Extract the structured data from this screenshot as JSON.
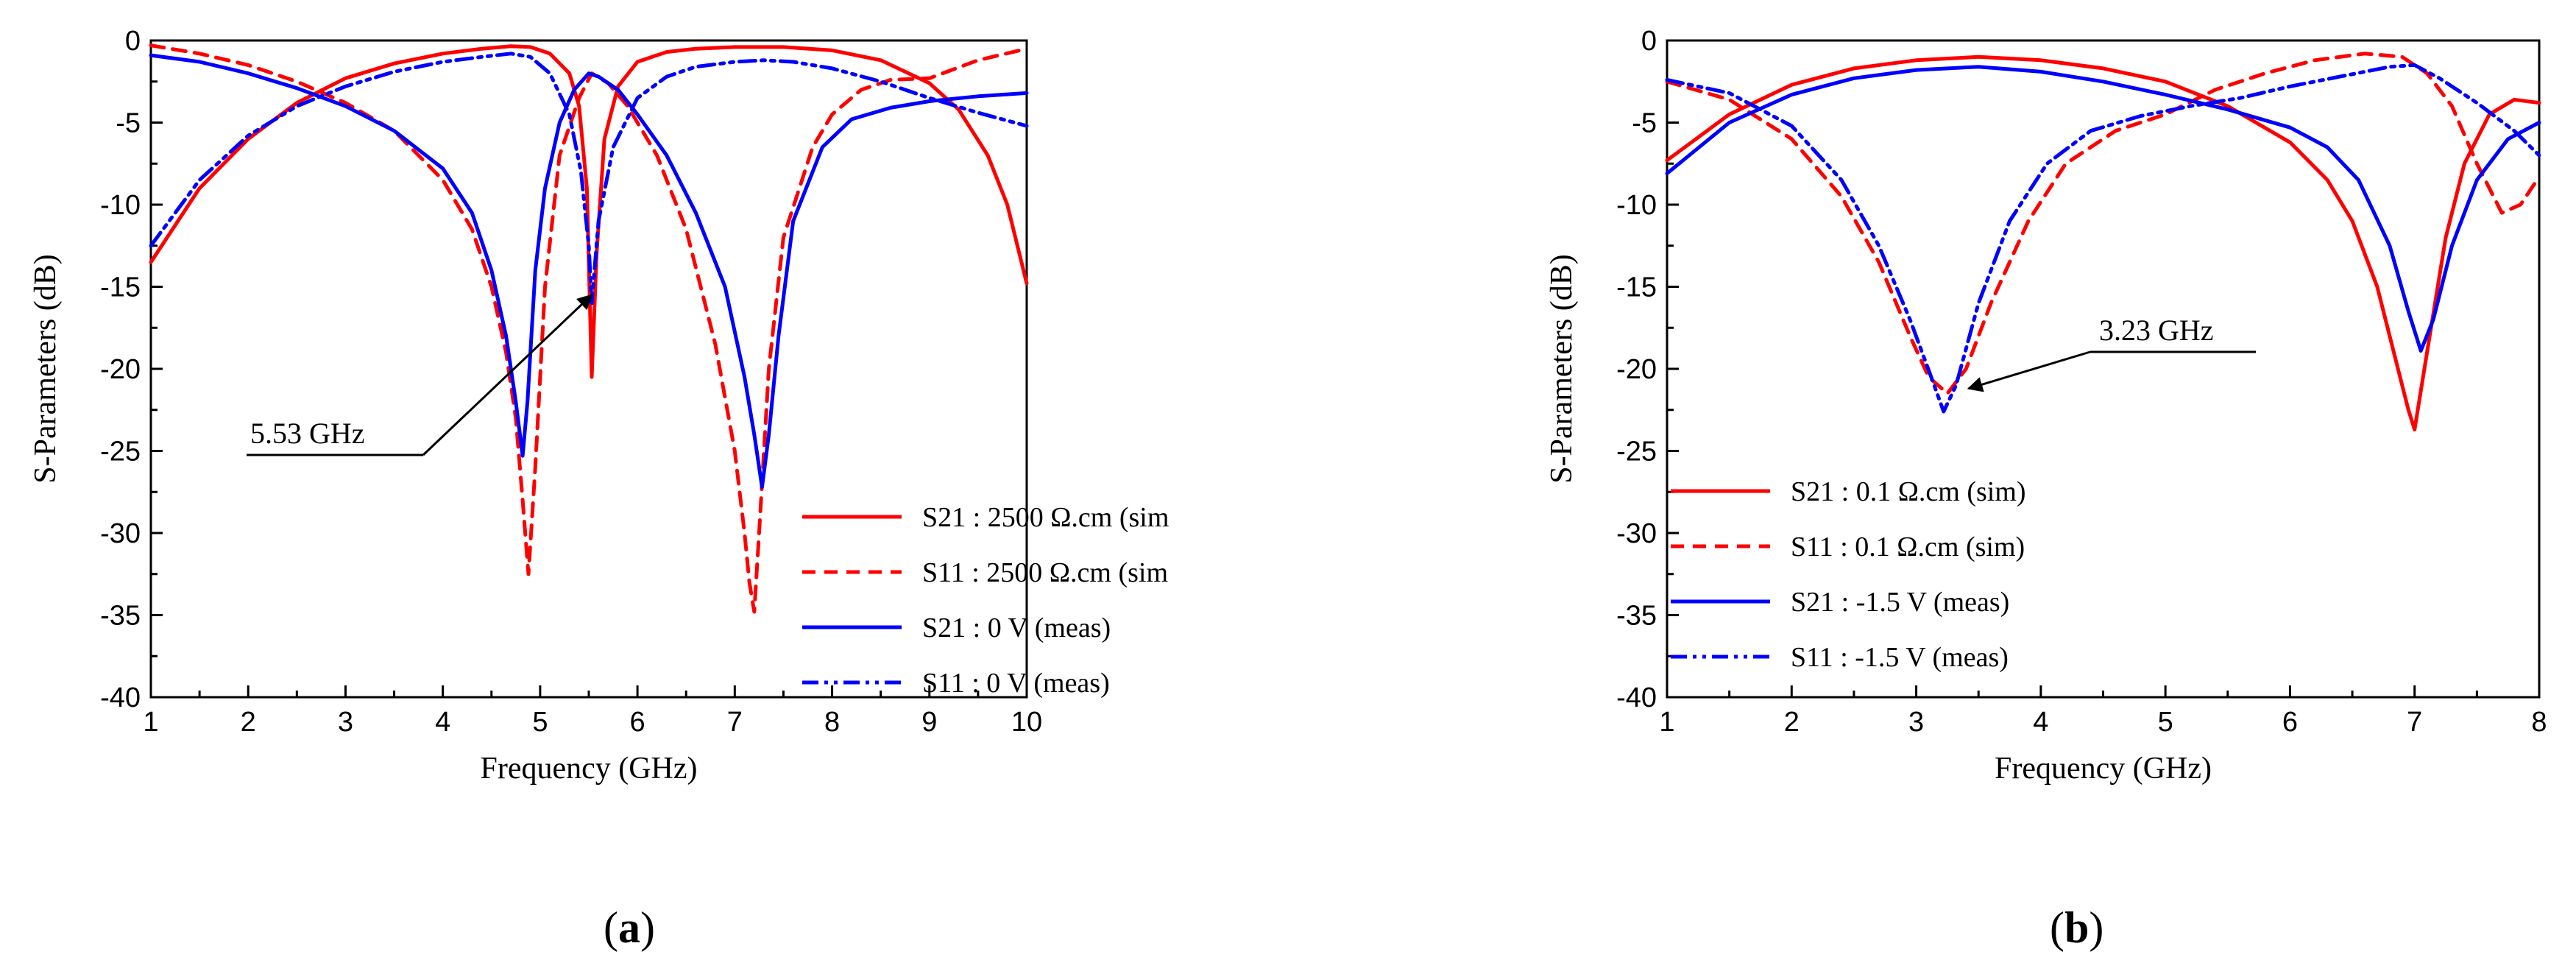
{
  "chart_data": [
    {
      "type": "line",
      "panel": "a",
      "caption_open": "(",
      "caption_letter": "a",
      "caption_close": ")",
      "xlabel": "Frequency (GHz)",
      "ylabel": "S-Parameters (dB)",
      "xlim": [
        1,
        10
      ],
      "ylim": [
        -40,
        0
      ],
      "xticks": [
        1,
        2,
        3,
        4,
        5,
        6,
        7,
        8,
        9,
        10
      ],
      "yticks": [
        0,
        -5,
        -10,
        -15,
        -20,
        -25,
        -30,
        -35,
        -40
      ],
      "legend_position": "bottom-right",
      "annotation": {
        "text": "5.53 GHz",
        "target": [
          5.53,
          -15.5
        ]
      },
      "series": [
        {
          "name": "S21 : 2500 Ω.cm (sim",
          "color": "#ff0000",
          "dash": "solid",
          "x": [
            1,
            1.5,
            2,
            2.5,
            3,
            3.5,
            4,
            4.4,
            4.7,
            4.9,
            5.1,
            5.3,
            5.4,
            5.48,
            5.53,
            5.58,
            5.66,
            5.8,
            6,
            6.3,
            6.6,
            7,
            7.5,
            8,
            8.5,
            9,
            9.3,
            9.6,
            9.8,
            10
          ],
          "y": [
            -13.5,
            -9,
            -6,
            -3.8,
            -2.3,
            -1.4,
            -0.8,
            -0.5,
            -0.35,
            -0.4,
            -0.8,
            -2,
            -4,
            -9,
            -20.5,
            -13,
            -6,
            -2.8,
            -1.3,
            -0.7,
            -0.5,
            -0.4,
            -0.4,
            -0.6,
            -1.2,
            -2.6,
            -4.2,
            -7,
            -10,
            -14.8
          ]
        },
        {
          "name": "S11 : 2500 Ω.cm (sim",
          "color": "#ff0000",
          "dash": "18,12",
          "x": [
            1,
            1.5,
            2,
            2.5,
            3,
            3.5,
            4,
            4.3,
            4.5,
            4.65,
            4.75,
            4.82,
            4.88,
            4.95,
            5.05,
            5.2,
            5.4,
            5.53,
            5.7,
            5.9,
            6.2,
            6.5,
            6.8,
            7,
            7.1,
            7.15,
            7.2,
            7.25,
            7.35,
            7.5,
            7.8,
            8,
            8.3,
            8.6,
            9,
            9.5,
            10
          ],
          "y": [
            -0.3,
            -0.8,
            -1.5,
            -2.5,
            -3.8,
            -5.5,
            -8.5,
            -11.5,
            -15,
            -19,
            -23,
            -28,
            -32.5,
            -26,
            -15,
            -7,
            -3.5,
            -2,
            -2.6,
            -4,
            -7,
            -11.5,
            -18.5,
            -25,
            -30,
            -33,
            -34.8,
            -30,
            -20,
            -12,
            -6.5,
            -4.5,
            -3,
            -2.4,
            -2.3,
            -1.2,
            -0.5
          ]
        },
        {
          "name": "S21 : 0 V (meas)",
          "color": "#0000ff",
          "dash": "solid",
          "x": [
            1,
            1.5,
            2,
            2.5,
            3,
            3.5,
            4,
            4.3,
            4.5,
            4.65,
            4.75,
            4.82,
            4.87,
            4.95,
            5.05,
            5.2,
            5.35,
            5.5,
            5.6,
            5.8,
            6,
            6.3,
            6.6,
            6.9,
            7.1,
            7.2,
            7.28,
            7.35,
            7.45,
            7.6,
            7.9,
            8.2,
            8.6,
            9,
            9.5,
            10
          ],
          "y": [
            -0.9,
            -1.3,
            -2,
            -2.9,
            -4,
            -5.5,
            -7.8,
            -10.5,
            -14,
            -18,
            -22,
            -25.3,
            -22,
            -14,
            -9,
            -5,
            -3,
            -2,
            -2.2,
            -3,
            -4.5,
            -7,
            -10.5,
            -15,
            -20.5,
            -24,
            -27.2,
            -24,
            -18,
            -11,
            -6.5,
            -4.8,
            -4.1,
            -3.7,
            -3.4,
            -3.2
          ]
        },
        {
          "name": "S11 : 0 V (meas)",
          "color": "#0000ff",
          "dash": "22,8,5,8,5,8",
          "x": [
            1,
            1.5,
            2,
            2.5,
            3,
            3.5,
            4,
            4.4,
            4.7,
            4.9,
            5.1,
            5.3,
            5.42,
            5.5,
            5.53,
            5.6,
            5.75,
            6,
            6.3,
            6.6,
            7,
            7.3,
            7.6,
            8,
            8.5,
            9,
            9.5,
            10
          ],
          "y": [
            -12.5,
            -8.5,
            -5.8,
            -4,
            -2.8,
            -1.9,
            -1.3,
            -1,
            -0.8,
            -1,
            -2,
            -4.5,
            -8,
            -12.5,
            -16,
            -11,
            -6.5,
            -3.5,
            -2.2,
            -1.6,
            -1.3,
            -1.2,
            -1.3,
            -1.7,
            -2.5,
            -3.5,
            -4.4,
            -5.2
          ]
        }
      ]
    },
    {
      "type": "line",
      "panel": "b",
      "caption_open": "(",
      "caption_letter": "b",
      "caption_close": ")",
      "xlabel": "Frequency (GHz)",
      "ylabel": "S-Parameters (dB)",
      "xlim": [
        1,
        8
      ],
      "ylim": [
        -40,
        0
      ],
      "xticks": [
        1,
        2,
        3,
        4,
        5,
        6,
        7,
        8
      ],
      "yticks": [
        0,
        -5,
        -10,
        -15,
        -20,
        -25,
        -30,
        -35,
        -40
      ],
      "legend_position": "bottom-left",
      "annotation": {
        "text": "3.23 GHz",
        "target": [
          3.42,
          -21.2
        ]
      },
      "series": [
        {
          "name": "S21 : 0.1 Ω.cm (sim)",
          "color": "#ff0000",
          "dash": "solid",
          "x": [
            1,
            1.5,
            2,
            2.5,
            3,
            3.5,
            4,
            4.5,
            5,
            5.5,
            6,
            6.3,
            6.5,
            6.7,
            6.85,
            6.95,
            7,
            7.1,
            7.25,
            7.4,
            7.6,
            7.8,
            8
          ],
          "y": [
            -7.3,
            -4.5,
            -2.7,
            -1.7,
            -1.2,
            -1,
            -1.2,
            -1.7,
            -2.5,
            -4,
            -6.2,
            -8.5,
            -11,
            -15,
            -19.5,
            -22.5,
            -23.7,
            -19,
            -12,
            -7.5,
            -4.5,
            -3.6,
            -3.8
          ]
        },
        {
          "name": "S11 : 0.1 Ω.cm (sim)",
          "color": "#ff0000",
          "dash": "18,12",
          "x": [
            1,
            1.5,
            2,
            2.4,
            2.7,
            2.95,
            3.1,
            3.25,
            3.4,
            3.6,
            3.9,
            4.2,
            4.6,
            5,
            5.4,
            5.8,
            6.2,
            6.6,
            6.9,
            7.1,
            7.3,
            7.5,
            7.7,
            7.85,
            8
          ],
          "y": [
            -2.5,
            -3.6,
            -6,
            -9.5,
            -13.5,
            -18,
            -20.5,
            -21.5,
            -20,
            -16,
            -11,
            -7.5,
            -5.5,
            -4.5,
            -3,
            -2,
            -1.2,
            -0.8,
            -1,
            -2,
            -4,
            -7.5,
            -10.5,
            -10,
            -8.3
          ]
        },
        {
          "name": "S21 : -1.5 V (meas)",
          "color": "#0000ff",
          "dash": "solid",
          "x": [
            1,
            1.5,
            2,
            2.5,
            3,
            3.5,
            4,
            4.5,
            5,
            5.5,
            6,
            6.3,
            6.55,
            6.8,
            6.95,
            7.05,
            7.15,
            7.3,
            7.5,
            7.75,
            8
          ],
          "y": [
            -8.1,
            -5,
            -3.3,
            -2.3,
            -1.8,
            -1.6,
            -1.9,
            -2.5,
            -3.3,
            -4.2,
            -5.3,
            -6.5,
            -8.5,
            -12.5,
            -16.5,
            -18.9,
            -17,
            -12.5,
            -8.5,
            -6,
            -5
          ]
        },
        {
          "name": "S11 : -1.5 V (meas)",
          "color": "#0000ff",
          "dash": "22,8,5,8,5,8",
          "x": [
            1,
            1.5,
            2,
            2.4,
            2.7,
            2.95,
            3.12,
            3.22,
            3.32,
            3.5,
            3.75,
            4.05,
            4.4,
            4.8,
            5.2,
            5.6,
            6,
            6.4,
            6.8,
            7,
            7.2,
            7.5,
            7.8,
            8
          ],
          "y": [
            -2.4,
            -3.2,
            -5.2,
            -8.5,
            -12.5,
            -17,
            -20.5,
            -22.6,
            -21,
            -16,
            -11,
            -7.5,
            -5.5,
            -4.6,
            -4,
            -3.5,
            -2.8,
            -2.2,
            -1.6,
            -1.5,
            -2.3,
            -3.8,
            -5.5,
            -7
          ]
        }
      ]
    }
  ]
}
